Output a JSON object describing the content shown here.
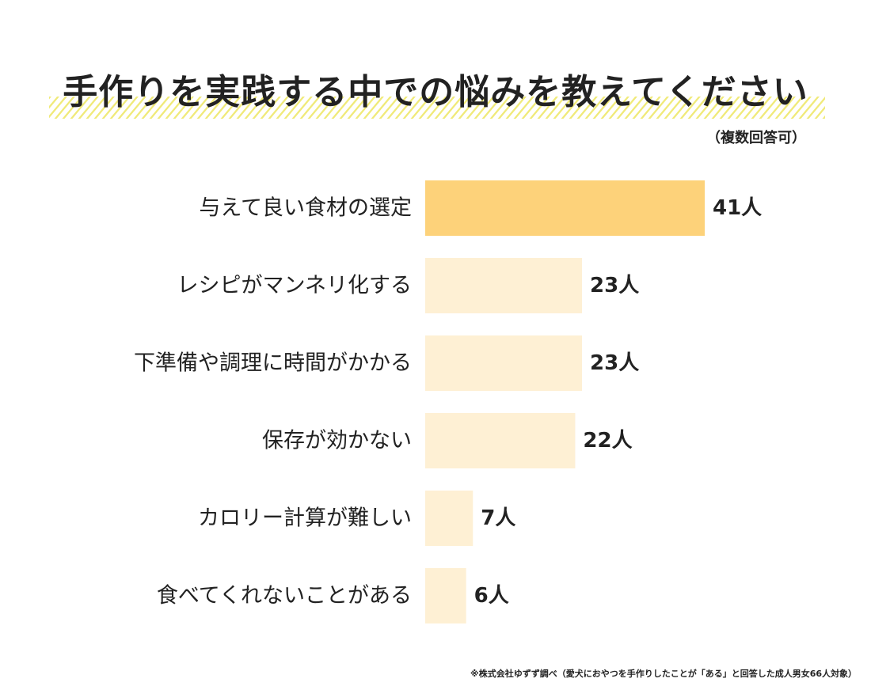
{
  "title": "手作りを実践する中での悩みを教えてください",
  "subtitle": "（複数回答可）",
  "footnote": "※株式会社ゆずず調べ（愛犬におやつを手作りしたことが「ある」と回答した成人男女66人対象）",
  "colors": {
    "highlight_bar": "#fdd27a",
    "bar": "#fef0d4",
    "stripe": "#f0ea7a",
    "text": "#222222"
  },
  "chart_data": {
    "type": "bar",
    "orientation": "horizontal",
    "categories": [
      "与えて良い食材の選定",
      "レシピがマンネリ化する",
      "下準備や調理に時間がかかる",
      "保存が効かない",
      "カロリー計算が難しい",
      "食べてくれないことがある"
    ],
    "values": [
      41,
      23,
      23,
      22,
      7,
      6
    ],
    "value_labels": [
      "41人",
      "23人",
      "23人",
      "22人",
      "7人",
      "6人"
    ],
    "unit": "人",
    "highlight_index": 0,
    "xlim": [
      0,
      41
    ],
    "grid": false,
    "legend": "none"
  }
}
